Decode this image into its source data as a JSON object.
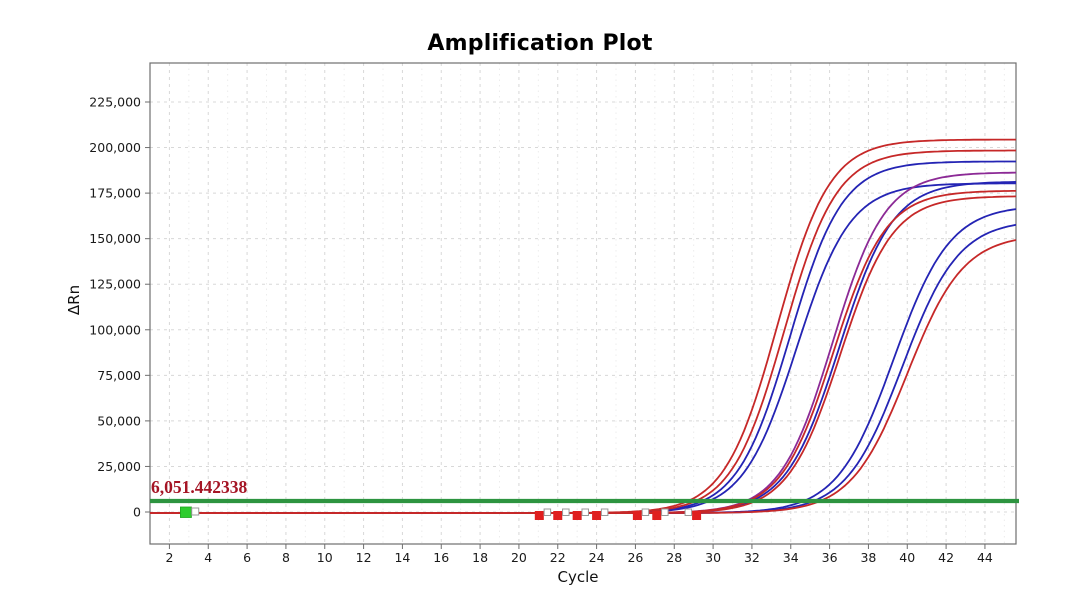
{
  "chart": {
    "title": "Amplification Plot",
    "xlabel": "Cycle",
    "ylabel": "ΔRn",
    "threshold_label": "6,051.442338"
  },
  "colors": {
    "red": "#c62828",
    "blue": "#2424b4",
    "purple": "#8c2a96",
    "threshold_green": "#2d9440",
    "marker_green": "#2ecc2e",
    "marker_red": "#e01f1f",
    "marker_white_fill": "#ffffff",
    "marker_white_border": "#999999",
    "grid_major": "#d8d8d8",
    "grid_minor": "#ececec",
    "frame": "#6e6e6e",
    "tick_text": "#1a1a1a"
  },
  "chart_data": {
    "type": "line",
    "title": "Amplification Plot",
    "xlabel": "Cycle",
    "ylabel": "ΔRn",
    "x_range": [
      1,
      45.6
    ],
    "y_range": [
      -17500,
      246500
    ],
    "grid": "dashed",
    "legend": "none",
    "x_ticks": [
      2,
      4,
      6,
      8,
      10,
      12,
      14,
      16,
      18,
      20,
      22,
      24,
      26,
      28,
      30,
      32,
      34,
      36,
      38,
      40,
      42,
      44
    ],
    "y_tick_values": [
      0,
      25000,
      50000,
      75000,
      100000,
      125000,
      150000,
      175000,
      200000,
      225000
    ],
    "y_tick_labels": [
      "0",
      "25,000",
      "50,000",
      "75,000",
      "100,000",
      "125,000",
      "150,000",
      "175,000",
      "200,000",
      "225,000"
    ],
    "threshold": {
      "value": 6051.442338,
      "label": "6,051.442338"
    },
    "series_model": "logistic: y = baseline + plateau / (1 + exp(-(x - midpoint)/slope))",
    "series": [
      {
        "name": "blue-curve-1",
        "color_key": "blue",
        "plateau": 193000,
        "midpoint": 33.95,
        "slope": 1.35,
        "baseline": -600,
        "ct": 29.3
      },
      {
        "name": "blue-curve-2",
        "color_key": "blue",
        "plateau": 181000,
        "midpoint": 34.3,
        "slope": 1.38,
        "baseline": -600,
        "ct": 29.8
      },
      {
        "name": "blue-curve-3",
        "color_key": "blue",
        "plateau": 182000,
        "midpoint": 36.5,
        "slope": 1.38,
        "baseline": -600,
        "ct": 32.0
      },
      {
        "name": "blue-curve-4",
        "color_key": "blue",
        "plateau": 169000,
        "midpoint": 39.3,
        "slope": 1.45,
        "baseline": -600,
        "ct": 34.5
      },
      {
        "name": "blue-curve-5",
        "color_key": "blue",
        "plateau": 161000,
        "midpoint": 39.75,
        "slope": 1.45,
        "baseline": -600,
        "ct": 35.0
      },
      {
        "name": "purple-curve-1",
        "color_key": "purple",
        "plateau": 187000,
        "midpoint": 36.15,
        "slope": 1.35,
        "baseline": -600,
        "ct": 31.6
      },
      {
        "name": "red-curve-1",
        "color_key": "red",
        "plateau": 205000,
        "midpoint": 33.3,
        "slope": 1.35,
        "baseline": -600,
        "ct": 28.6
      },
      {
        "name": "red-curve-2",
        "color_key": "red",
        "plateau": 199000,
        "midpoint": 33.65,
        "slope": 1.35,
        "baseline": -600,
        "ct": 29.0
      },
      {
        "name": "red-curve-3",
        "color_key": "red",
        "plateau": 177000,
        "midpoint": 36.2,
        "slope": 1.35,
        "baseline": -600,
        "ct": 31.7
      },
      {
        "name": "red-curve-4",
        "color_key": "red",
        "plateau": 174000,
        "midpoint": 36.55,
        "slope": 1.35,
        "baseline": -600,
        "ct": 32.1
      },
      {
        "name": "red-curve-5",
        "color_key": "red",
        "plateau": 153000,
        "midpoint": 40.0,
        "slope": 1.45,
        "baseline": -600,
        "ct": 35.4
      }
    ],
    "markers": {
      "green_handle": {
        "cycle": 2.85,
        "value": -500
      },
      "baseline_flags": [
        {
          "cycle": 21.05,
          "white_side": "right"
        },
        {
          "cycle": 22.0,
          "white_side": "right"
        },
        {
          "cycle": 23.0,
          "white_side": "right"
        },
        {
          "cycle": 24.0,
          "white_side": "right"
        },
        {
          "cycle": 26.1,
          "white_side": "right"
        },
        {
          "cycle": 27.1,
          "white_side": "right"
        },
        {
          "cycle": 29.15,
          "white_side": "left"
        }
      ]
    }
  }
}
